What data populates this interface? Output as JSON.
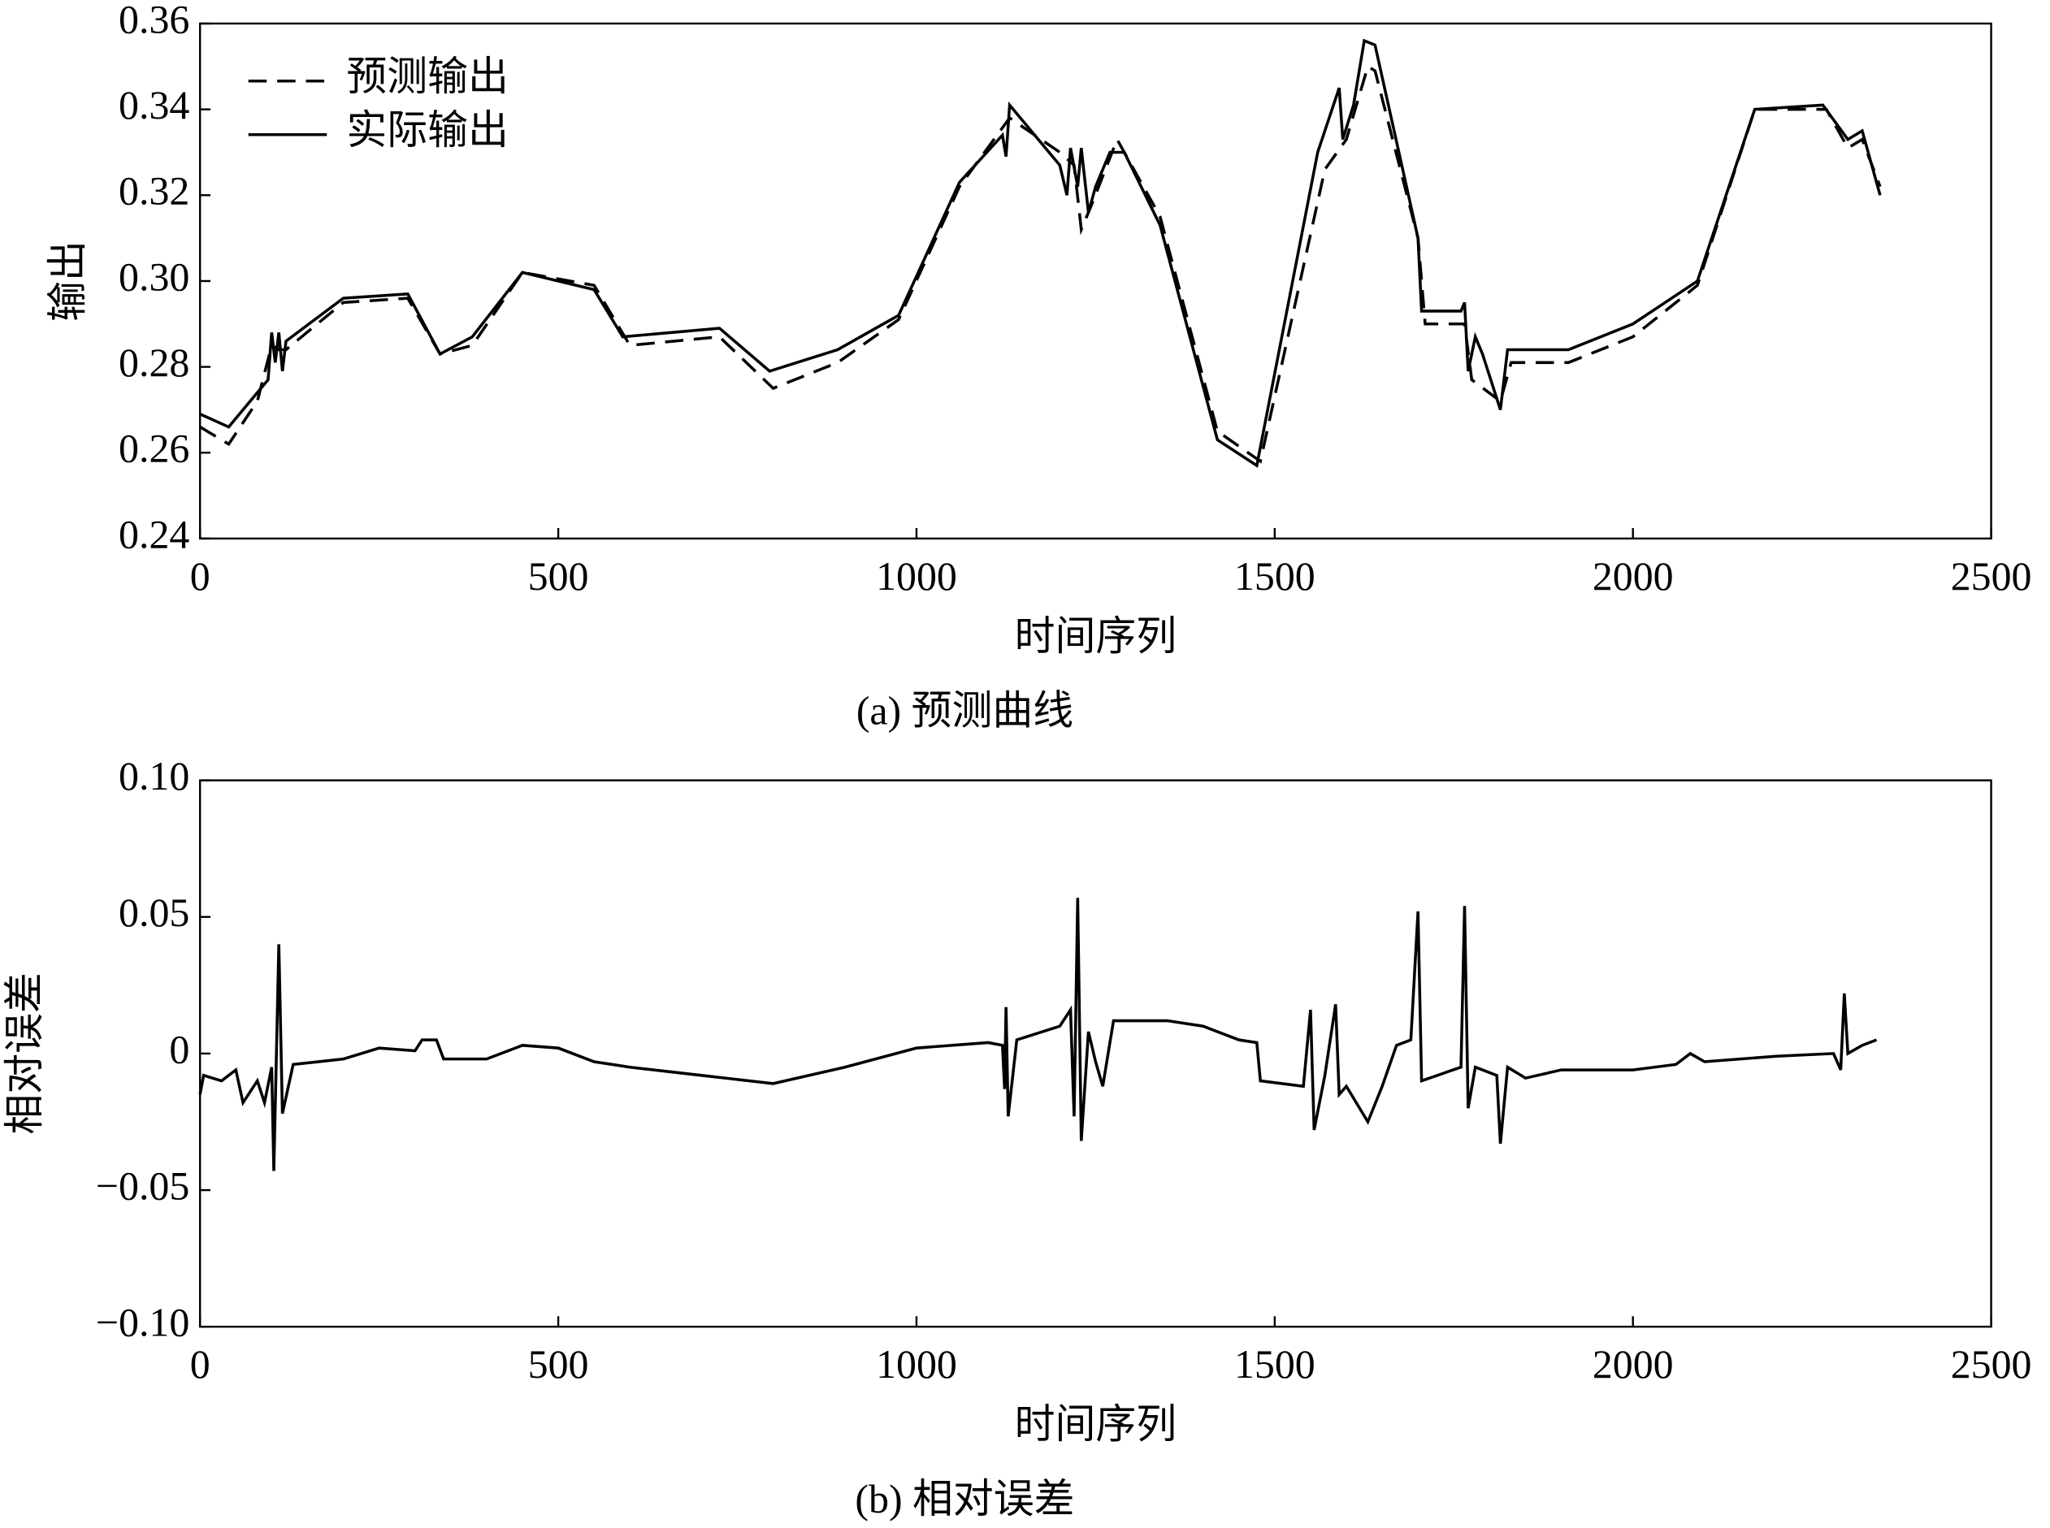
{
  "chart_data": [
    {
      "type": "line",
      "caption": "(a) 预测曲线",
      "xlabel": "时间序列",
      "ylabel": "输出",
      "xlim": [
        0,
        2500
      ],
      "xticks": [
        0,
        500,
        1000,
        1500,
        2000,
        2500
      ],
      "ylim": [
        0.24,
        0.36
      ],
      "yticks": [
        0.24,
        0.26,
        0.28,
        {
          "value": 0.3,
          "label": "0.30"
        },
        0.32,
        0.34,
        0.36
      ],
      "legend": "upper left",
      "series": [
        {
          "name": "预测输出",
          "color": "#000000",
          "line_style": "dashed",
          "x": [
            0,
            40,
            80,
            100,
            110,
            120,
            200,
            290,
            335,
            380,
            450,
            550,
            600,
            725,
            800,
            890,
            975,
            1060,
            1130,
            1200,
            1220,
            1230,
            1245,
            1280,
            1340,
            1420,
            1480,
            1570,
            1600,
            1630,
            1640,
            1700,
            1710,
            1765,
            1775,
            1815,
            1830,
            1910,
            2000,
            2090,
            2170,
            2270,
            2300,
            2320,
            2345
          ],
          "values": [
            0.266,
            0.262,
            0.272,
            0.285,
            0.284,
            0.284,
            0.295,
            0.296,
            0.283,
            0.285,
            0.302,
            0.299,
            0.285,
            0.287,
            0.275,
            0.281,
            0.291,
            0.322,
            0.338,
            0.33,
            0.327,
            0.312,
            0.318,
            0.333,
            0.315,
            0.265,
            0.258,
            0.326,
            0.333,
            0.35,
            0.349,
            0.31,
            0.29,
            0.29,
            0.277,
            0.272,
            0.281,
            0.281,
            0.287,
            0.299,
            0.34,
            0.34,
            0.331,
            0.333,
            0.322
          ]
        },
        {
          "name": "实际输出",
          "color": "#000000",
          "line_style": "solid",
          "x": [
            0,
            40,
            80,
            95,
            100,
            105,
            110,
            115,
            120,
            200,
            290,
            335,
            380,
            450,
            550,
            590,
            725,
            795,
            890,
            975,
            1060,
            1120,
            1125,
            1130,
            1200,
            1210,
            1215,
            1225,
            1230,
            1240,
            1250,
            1270,
            1290,
            1340,
            1420,
            1475,
            1560,
            1590,
            1595,
            1610,
            1625,
            1640,
            1700,
            1705,
            1760,
            1765,
            1770,
            1780,
            1790,
            1815,
            1825,
            1910,
            2000,
            2090,
            2170,
            2265,
            2300,
            2320,
            2345
          ],
          "values": [
            0.269,
            0.266,
            0.274,
            0.277,
            0.288,
            0.281,
            0.288,
            0.279,
            0.286,
            0.296,
            0.297,
            0.283,
            0.287,
            0.302,
            0.298,
            0.287,
            0.289,
            0.279,
            0.284,
            0.292,
            0.323,
            0.334,
            0.329,
            0.341,
            0.327,
            0.32,
            0.331,
            0.322,
            0.331,
            0.316,
            0.322,
            0.33,
            0.33,
            0.313,
            0.263,
            0.257,
            0.33,
            0.345,
            0.333,
            0.341,
            0.356,
            0.355,
            0.31,
            0.293,
            0.293,
            0.295,
            0.279,
            0.287,
            0.283,
            0.27,
            0.284,
            0.284,
            0.29,
            0.3,
            0.34,
            0.341,
            0.333,
            0.335,
            0.32
          ]
        }
      ]
    },
    {
      "type": "line",
      "caption": "(b) 相对误差",
      "xlabel": "时间序列",
      "ylabel": "相对误差",
      "xlim": [
        0,
        2500
      ],
      "xticks": [
        0,
        500,
        1000,
        1500,
        2000,
        2500
      ],
      "ylim": [
        -0.1,
        0.1
      ],
      "yticks": [
        {
          "value": -0.1,
          "label": "−0.10"
        },
        {
          "value": -0.05,
          "label": "−0.05"
        },
        0,
        0.05,
        {
          "value": 0.1,
          "label": "0.10"
        }
      ],
      "color": "#000000",
      "x": [
        0,
        5,
        30,
        50,
        60,
        80,
        90,
        100,
        103,
        110,
        115,
        130,
        200,
        250,
        300,
        310,
        330,
        340,
        400,
        450,
        500,
        550,
        600,
        700,
        800,
        900,
        1000,
        1100,
        1120,
        1123,
        1125,
        1128,
        1140,
        1200,
        1215,
        1220,
        1225,
        1230,
        1240,
        1250,
        1260,
        1275,
        1350,
        1400,
        1450,
        1475,
        1480,
        1540,
        1550,
        1555,
        1570,
        1585,
        1590,
        1600,
        1630,
        1650,
        1670,
        1690,
        1700,
        1705,
        1760,
        1765,
        1770,
        1780,
        1810,
        1815,
        1825,
        1850,
        1900,
        2000,
        2060,
        2080,
        2100,
        2200,
        2280,
        2290,
        2295,
        2300,
        2320,
        2340
      ],
      "values": [
        -0.015,
        -0.008,
        -0.01,
        -0.006,
        -0.018,
        -0.01,
        -0.018,
        -0.005,
        -0.043,
        0.04,
        -0.022,
        -0.004,
        -0.002,
        0.002,
        0.001,
        0.005,
        0.005,
        -0.002,
        -0.002,
        0.003,
        0.002,
        -0.003,
        -0.005,
        -0.008,
        -0.011,
        -0.005,
        0.002,
        0.004,
        0.003,
        -0.013,
        0.017,
        -0.023,
        0.005,
        0.01,
        0.016,
        -0.023,
        0.057,
        -0.032,
        0.008,
        -0.003,
        -0.012,
        0.012,
        0.012,
        0.01,
        0.005,
        0.004,
        -0.01,
        -0.012,
        0.016,
        -0.028,
        -0.008,
        0.018,
        -0.015,
        -0.012,
        -0.025,
        -0.012,
        0.003,
        0.005,
        0.052,
        -0.01,
        -0.005,
        0.054,
        -0.02,
        -0.005,
        -0.008,
        -0.033,
        -0.005,
        -0.009,
        -0.006,
        -0.006,
        -0.004,
        0,
        -0.003,
        -0.001,
        0,
        -0.006,
        0.022,
        0,
        0.003,
        0.005
      ]
    }
  ]
}
